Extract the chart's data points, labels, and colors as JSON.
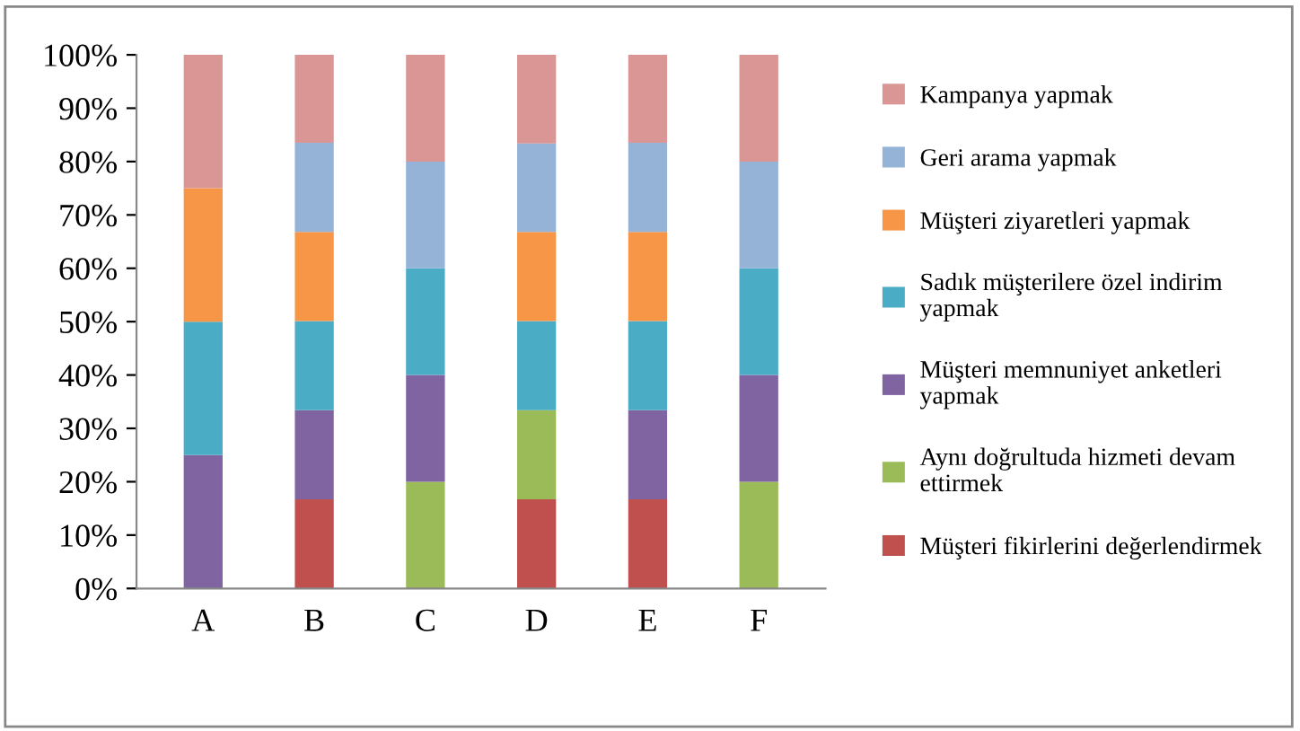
{
  "chart_data": {
    "type": "bar",
    "stacked": true,
    "categories": [
      "A",
      "B",
      "C",
      "D",
      "E",
      "F"
    ],
    "ylim": [
      0,
      100
    ],
    "yticks": [
      {
        "value": 0,
        "label": "0%"
      },
      {
        "value": 10,
        "label": "10%"
      },
      {
        "value": 20,
        "label": "20%"
      },
      {
        "value": 30,
        "label": "30%"
      },
      {
        "value": 40,
        "label": "40%"
      },
      {
        "value": 50,
        "label": "50%"
      },
      {
        "value": 60,
        "label": "60%"
      },
      {
        "value": 70,
        "label": "70%"
      },
      {
        "value": 80,
        "label": "80%"
      },
      {
        "value": 90,
        "label": "90%"
      },
      {
        "value": 100,
        "label": "100%"
      }
    ],
    "grid": false,
    "legend": "right",
    "series": [
      {
        "name": "Müşteri fikirlerini değerlendirmek",
        "color": "#c0504d",
        "values": [
          0,
          16.7,
          0,
          16.7,
          16.7,
          0
        ]
      },
      {
        "name": "Aynı doğrultuda hizmeti devam\nettirmek",
        "color": "#9bbb59",
        "values": [
          0,
          0,
          20,
          16.7,
          0,
          20
        ]
      },
      {
        "name": "Müşteri memnuniyet anketleri\nyapmak",
        "color": "#8064a2",
        "values": [
          25,
          16.7,
          20,
          0,
          16.7,
          20
        ]
      },
      {
        "name": "Sadık müşterilere özel indirim\nyapmak",
        "color": "#4bacc6",
        "values": [
          25,
          16.7,
          20,
          16.7,
          16.7,
          20
        ]
      },
      {
        "name": "Müşteri ziyaretleri yapmak",
        "color": "#f79646",
        "values": [
          25,
          16.7,
          0,
          16.7,
          16.7,
          0
        ]
      },
      {
        "name": "Geri arama yapmak",
        "color": "#95b3d7",
        "values": [
          0,
          16.7,
          20,
          16.6,
          16.7,
          20
        ]
      },
      {
        "name": "Kampanya yapmak",
        "color": "#d99694",
        "values": [
          25,
          16.6,
          20,
          16.6,
          16.6,
          20
        ]
      }
    ]
  }
}
